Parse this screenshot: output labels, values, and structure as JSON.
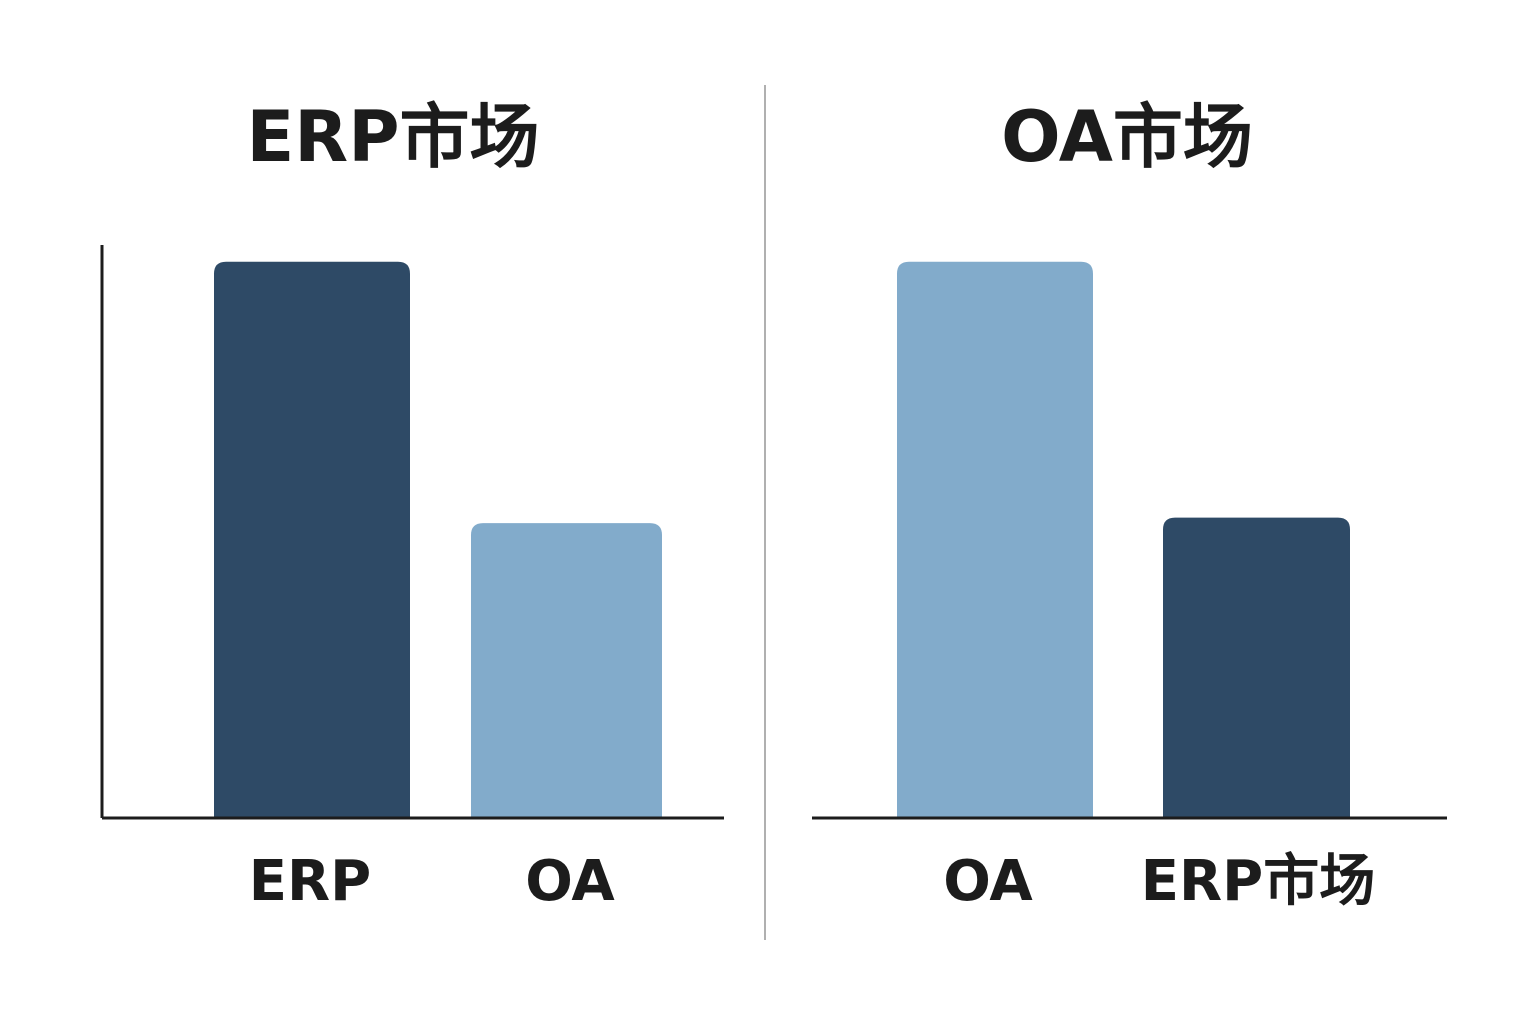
{
  "chart_data": [
    {
      "type": "bar",
      "title": "ERP市场",
      "categories": [
        "ERP",
        "OA"
      ],
      "values": [
        100,
        53
      ],
      "colors": [
        "#2e4a66",
        "#82abcb"
      ],
      "ylim": [
        0,
        103
      ],
      "y_axis_line": true
    },
    {
      "type": "bar",
      "title": "OA市场",
      "categories": [
        "OA",
        "ERP市场"
      ],
      "values": [
        100,
        54
      ],
      "colors": [
        "#82abcb",
        "#2e4a66"
      ],
      "ylim": [
        0,
        103
      ],
      "y_axis_line": false
    }
  ]
}
